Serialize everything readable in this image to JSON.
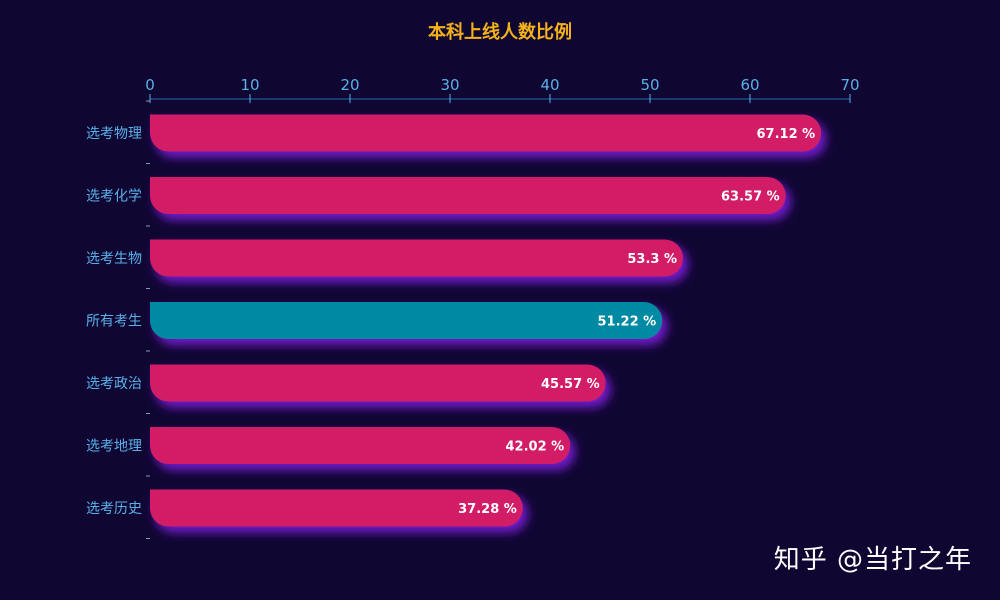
{
  "chart_data": {
    "type": "bar",
    "orientation": "horizontal",
    "title": "本科上线人数比例",
    "xlabel": "",
    "ylabel": "",
    "xlim": [
      0,
      70
    ],
    "x_ticks": [
      "0",
      "10",
      "20",
      "30",
      "40",
      "50",
      "60",
      "70"
    ],
    "categories": [
      "选考物理",
      "选考化学",
      "选考生物",
      "所有考生",
      "选考政治",
      "选考地理",
      "选考历史"
    ],
    "values": [
      67.12,
      63.57,
      53.3,
      51.22,
      45.57,
      42.02,
      37.28
    ],
    "data_labels": [
      "67.12 %",
      "63.57 %",
      "53.3 %",
      "51.22 %",
      "45.57 %",
      "42.02 %",
      "37.28 %"
    ],
    "bar_colors": [
      "#d31c66",
      "#d31c66",
      "#d31c66",
      "#0689a3",
      "#d31c66",
      "#d31c66",
      "#d31c66"
    ],
    "grid": false,
    "legend": "none"
  },
  "watermark": "知乎 @当打之年",
  "colors": {
    "background": "#0f0632",
    "title": "#f5b21a",
    "axis_text": "#5ab0e8",
    "bar_shadow": "#7a1bd6"
  }
}
